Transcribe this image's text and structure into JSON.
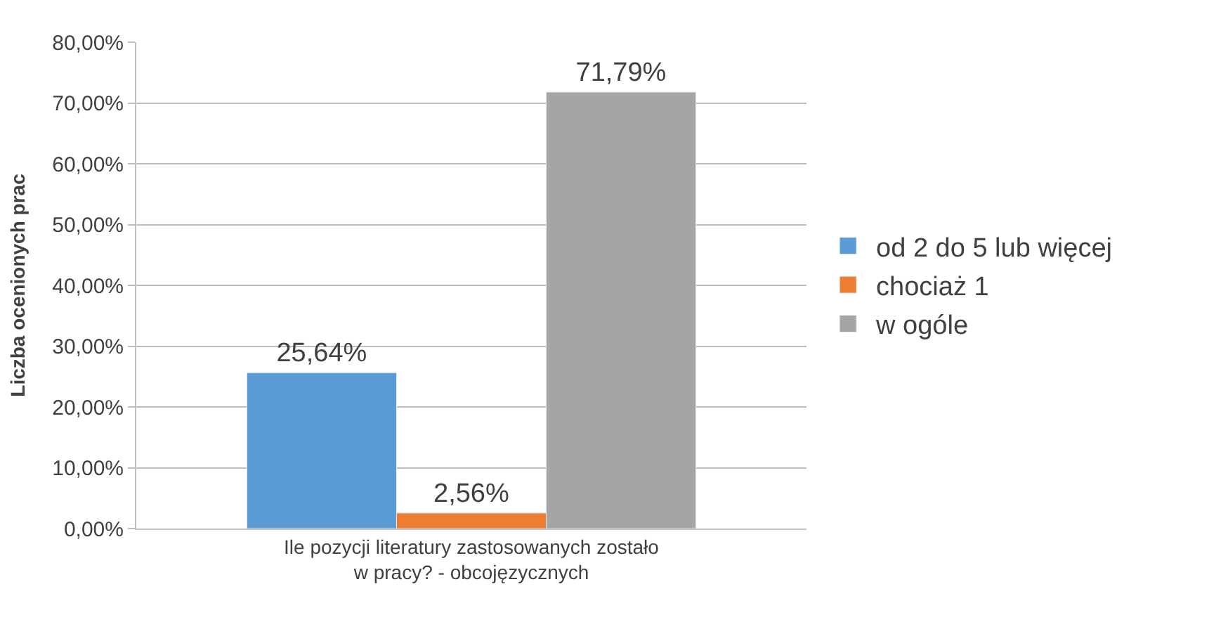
{
  "chart_data": {
    "type": "bar",
    "ylabel": "Liczba ocenionych prac",
    "categories": [
      "Ile pozycji literatury zastosowanych zostało w pracy? - obcojęzycznych"
    ],
    "series": [
      {
        "name": "od 2 do 5 lub więcej",
        "color": "#5b9bd5",
        "values": [
          25.64
        ],
        "value_labels": [
          "25,64%"
        ]
      },
      {
        "name": "chociaż 1",
        "color": "#ed7d31",
        "values": [
          2.56
        ],
        "value_labels": [
          "2,56%"
        ]
      },
      {
        "name": "w ogóle",
        "color": "#a5a5a5",
        "values": [
          71.79
        ],
        "value_labels": [
          "71,79%"
        ]
      }
    ],
    "ylim": [
      0,
      80
    ],
    "yticks": [
      {
        "value": 0,
        "label": "0,00%"
      },
      {
        "value": 10,
        "label": "10,00%"
      },
      {
        "value": 20,
        "label": "20,00%"
      },
      {
        "value": 30,
        "label": "30,00%"
      },
      {
        "value": 40,
        "label": "40,00%"
      },
      {
        "value": 50,
        "label": "50,00%"
      },
      {
        "value": 60,
        "label": "60,00%"
      },
      {
        "value": 70,
        "label": "70,00%"
      },
      {
        "value": 80,
        "label": "80,00%"
      }
    ],
    "grid": "y",
    "legend": "right"
  }
}
